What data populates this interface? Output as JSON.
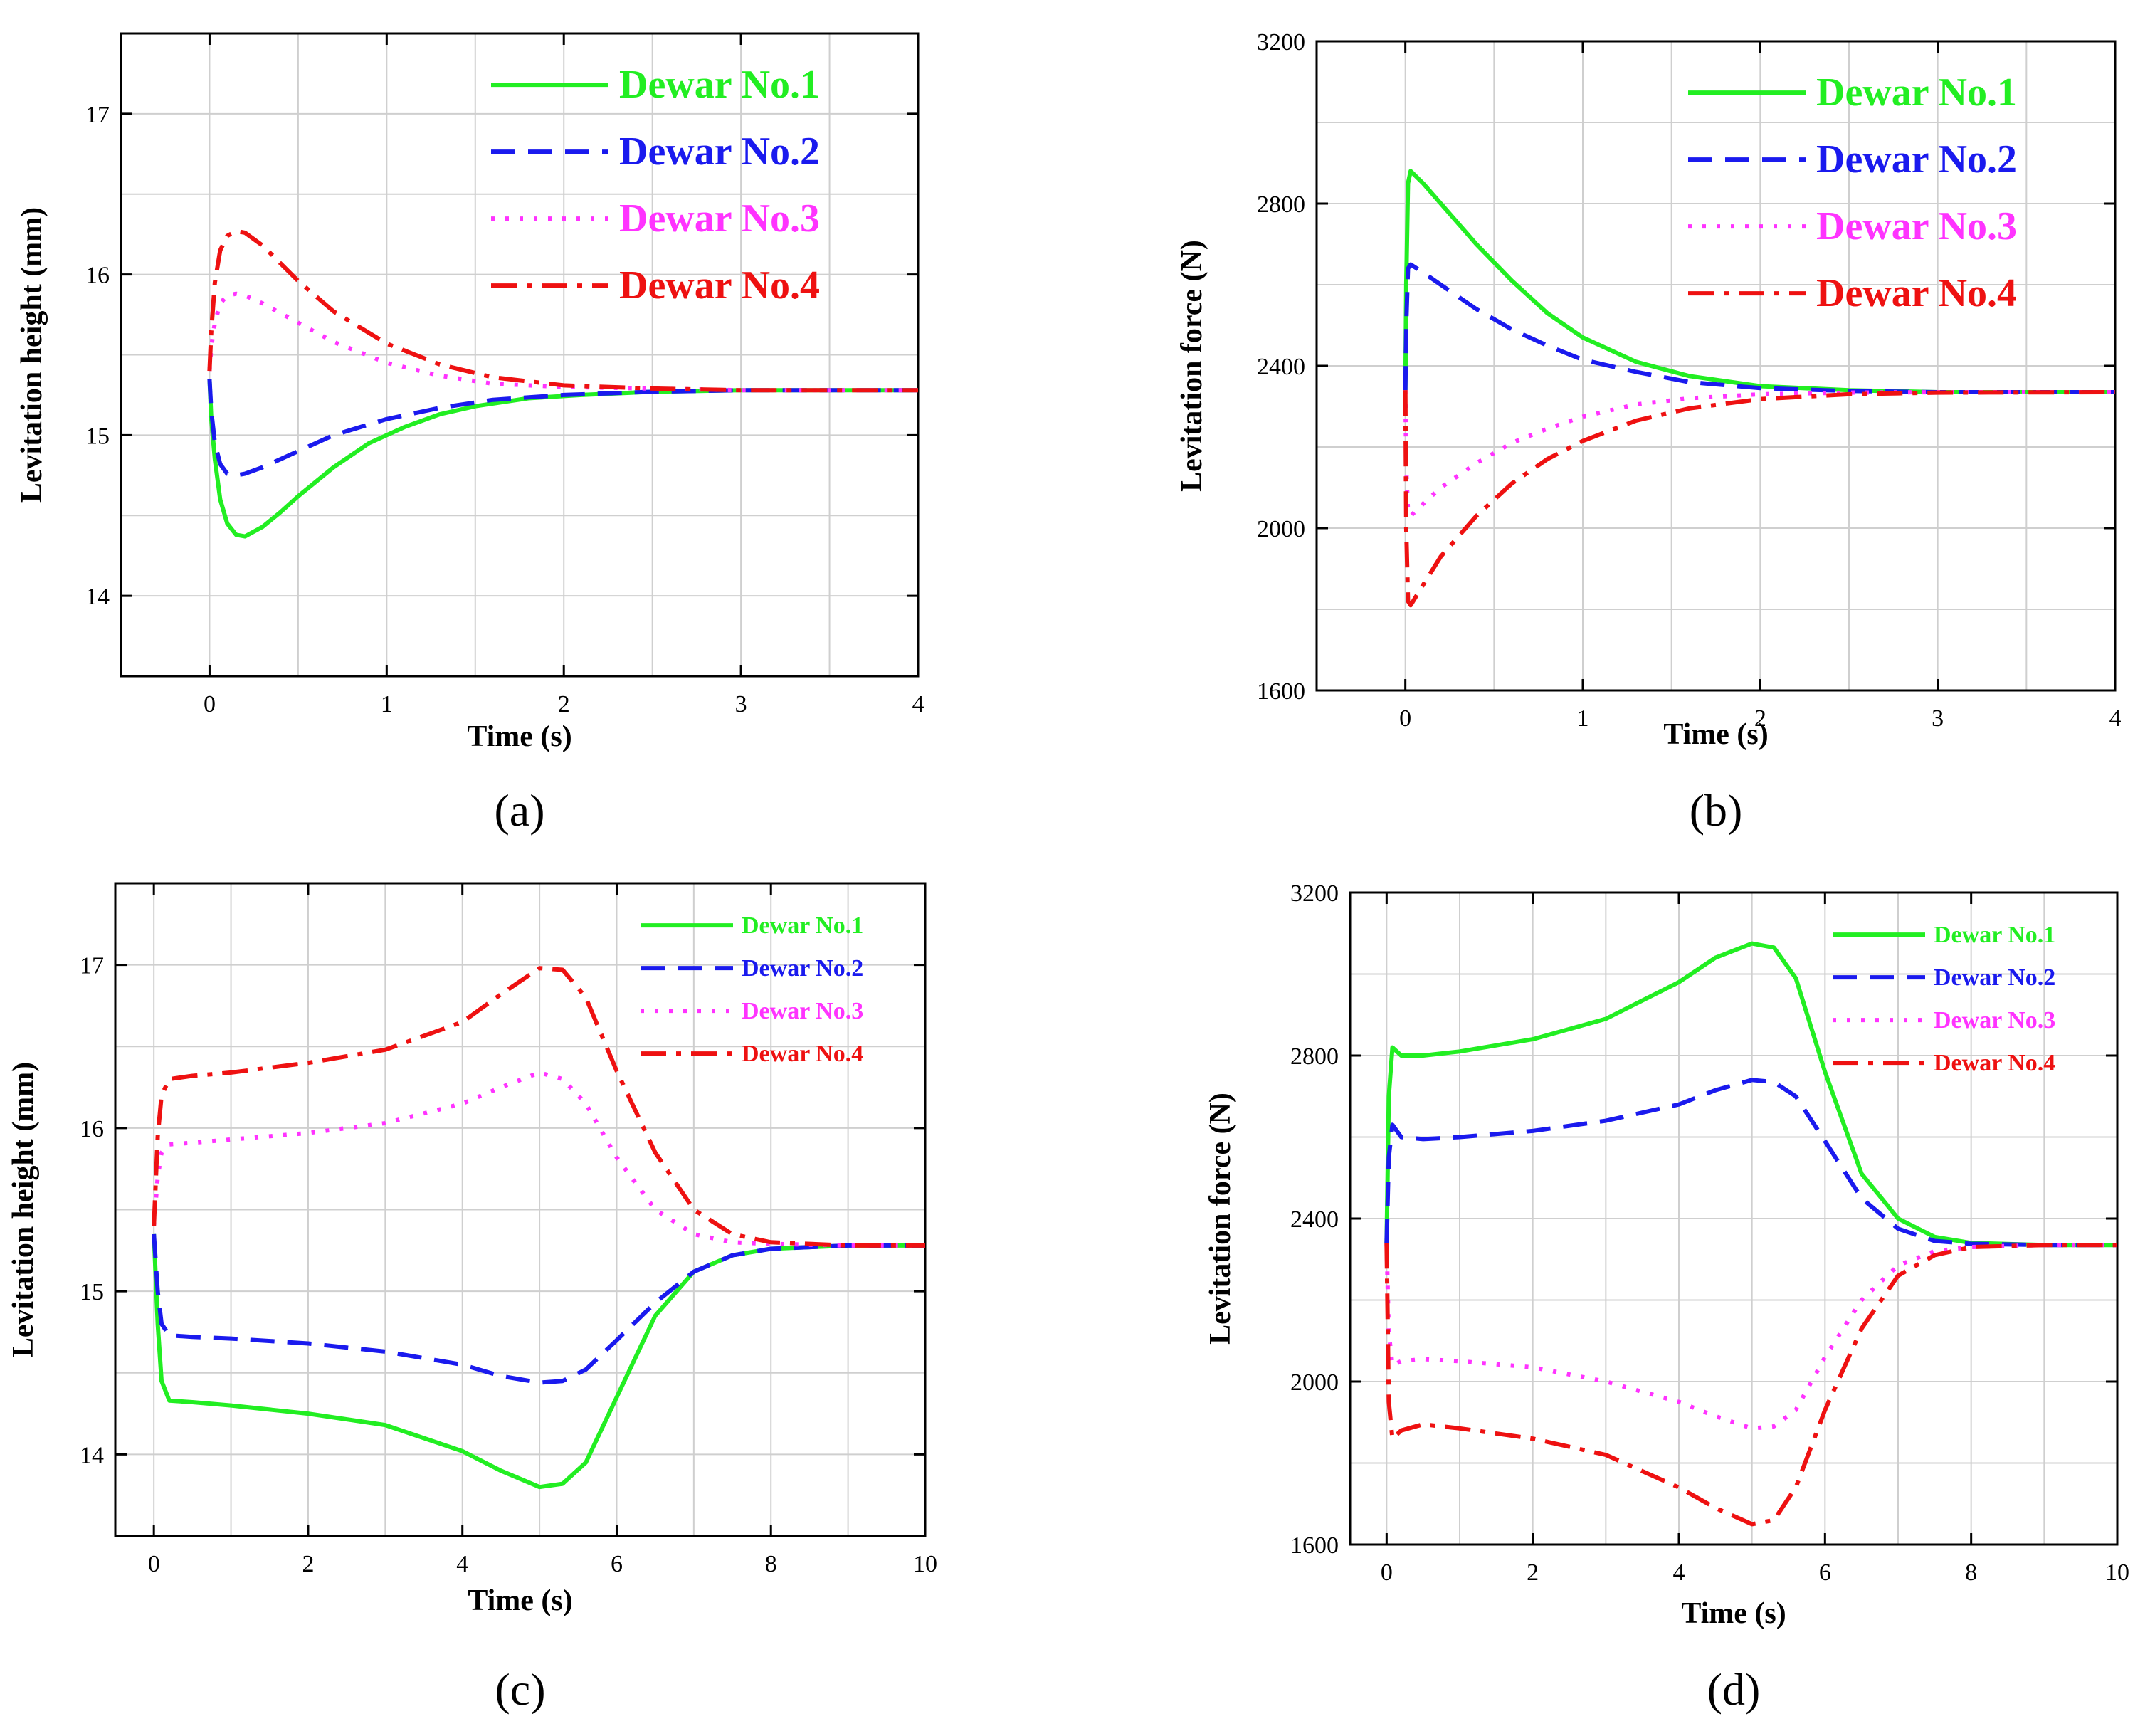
{
  "chart_data": [
    {
      "type": "line",
      "panel_label": "(a)",
      "xlabel": "Time (s)",
      "ylabel": "Levitation height (mm)",
      "xlim": [
        -0.5,
        4
      ],
      "ylim": [
        13.5,
        17.5
      ],
      "xticks": [
        0,
        1,
        2,
        3,
        4
      ],
      "yticks": [
        14,
        15,
        16,
        17
      ],
      "grid": true,
      "legend_position": "top-right",
      "legend_size": "large",
      "series": [
        {
          "name": "Dewar No.1",
          "color": "#22ee22",
          "dash": "solid",
          "x": [
            0,
            0.01,
            0.03,
            0.06,
            0.1,
            0.15,
            0.2,
            0.3,
            0.4,
            0.5,
            0.7,
            0.9,
            1.1,
            1.3,
            1.5,
            1.8,
            2.1,
            2.5,
            3.0,
            4.0
          ],
          "y": [
            15.35,
            15.1,
            14.85,
            14.6,
            14.45,
            14.38,
            14.37,
            14.43,
            14.52,
            14.62,
            14.8,
            14.95,
            15.05,
            15.13,
            15.18,
            15.23,
            15.25,
            15.27,
            15.28,
            15.28
          ]
        },
        {
          "name": "Dewar No.2",
          "color": "#1a1aee",
          "dash": "dash",
          "x": [
            0,
            0.01,
            0.03,
            0.06,
            0.1,
            0.15,
            0.2,
            0.3,
            0.5,
            0.7,
            1.0,
            1.3,
            1.6,
            2.0,
            2.5,
            3.0,
            4.0
          ],
          "y": [
            15.35,
            15.15,
            14.95,
            14.82,
            14.76,
            14.75,
            14.76,
            14.8,
            14.9,
            15.0,
            15.1,
            15.17,
            15.22,
            15.25,
            15.27,
            15.28,
            15.28
          ]
        },
        {
          "name": "Dewar No.3",
          "color": "#ff33ff",
          "dash": "dot",
          "x": [
            0,
            0.01,
            0.03,
            0.06,
            0.1,
            0.15,
            0.2,
            0.3,
            0.5,
            0.7,
            1.0,
            1.3,
            1.6,
            2.0,
            2.5,
            3.0,
            4.0
          ],
          "y": [
            15.4,
            15.55,
            15.7,
            15.82,
            15.87,
            15.88,
            15.87,
            15.82,
            15.7,
            15.58,
            15.45,
            15.37,
            15.32,
            15.3,
            15.29,
            15.28,
            15.28
          ]
        },
        {
          "name": "Dewar No.4",
          "color": "#ee1111",
          "dash": "dashdot",
          "x": [
            0,
            0.01,
            0.03,
            0.06,
            0.1,
            0.15,
            0.2,
            0.3,
            0.5,
            0.7,
            1.0,
            1.3,
            1.6,
            2.0,
            2.5,
            3.0,
            4.0
          ],
          "y": [
            15.4,
            15.65,
            15.95,
            16.15,
            16.24,
            16.27,
            16.26,
            16.18,
            15.96,
            15.77,
            15.57,
            15.44,
            15.36,
            15.31,
            15.29,
            15.28,
            15.28
          ]
        }
      ]
    },
    {
      "type": "line",
      "panel_label": "(b)",
      "xlabel": "Time (s)",
      "ylabel": "Levitation force (N)",
      "xlim": [
        -0.5,
        4
      ],
      "ylim": [
        1600,
        3200
      ],
      "xticks": [
        0,
        1,
        2,
        3,
        4
      ],
      "yticks": [
        1600,
        2000,
        2400,
        2800,
        3200
      ],
      "grid": true,
      "legend_position": "top-right",
      "legend_size": "large",
      "series": [
        {
          "name": "Dewar No.1",
          "color": "#22ee22",
          "dash": "solid",
          "x": [
            0,
            0.005,
            0.015,
            0.03,
            0.1,
            0.2,
            0.4,
            0.6,
            0.8,
            1.0,
            1.3,
            1.6,
            2.0,
            2.5,
            3.0,
            4.0
          ],
          "y": [
            2340,
            2600,
            2850,
            2880,
            2850,
            2800,
            2700,
            2610,
            2530,
            2470,
            2410,
            2375,
            2350,
            2340,
            2335,
            2335
          ]
        },
        {
          "name": "Dewar No.2",
          "color": "#1a1aee",
          "dash": "dash",
          "x": [
            0,
            0.005,
            0.015,
            0.03,
            0.1,
            0.2,
            0.4,
            0.6,
            0.8,
            1.0,
            1.3,
            1.6,
            2.0,
            2.5,
            3.0,
            4.0
          ],
          "y": [
            2340,
            2500,
            2640,
            2650,
            2630,
            2600,
            2540,
            2490,
            2450,
            2415,
            2385,
            2360,
            2345,
            2338,
            2335,
            2335
          ]
        },
        {
          "name": "Dewar No.3",
          "color": "#ff33ff",
          "dash": "dot",
          "x": [
            0,
            0.005,
            0.015,
            0.03,
            0.1,
            0.2,
            0.4,
            0.6,
            0.8,
            1.0,
            1.3,
            1.6,
            2.0,
            2.5,
            3.0,
            4.0
          ],
          "y": [
            2340,
            2150,
            2040,
            2030,
            2060,
            2100,
            2160,
            2210,
            2245,
            2275,
            2305,
            2320,
            2330,
            2334,
            2335,
            2335
          ]
        },
        {
          "name": "Dewar No.4",
          "color": "#ee1111",
          "dash": "dashdot",
          "x": [
            0,
            0.005,
            0.015,
            0.03,
            0.1,
            0.2,
            0.4,
            0.6,
            0.8,
            1.0,
            1.3,
            1.6,
            2.0,
            2.5,
            3.0,
            4.0
          ],
          "y": [
            2340,
            2000,
            1820,
            1810,
            1860,
            1930,
            2030,
            2110,
            2170,
            2215,
            2265,
            2295,
            2318,
            2330,
            2334,
            2335
          ]
        }
      ]
    },
    {
      "type": "line",
      "panel_label": "(c)",
      "xlabel": "Time (s)",
      "ylabel": "Levitation height (mm)",
      "xlim": [
        -0.5,
        10
      ],
      "ylim": [
        13.5,
        17.5
      ],
      "xticks": [
        0,
        2,
        4,
        6,
        8,
        10
      ],
      "yticks": [
        14,
        15,
        16,
        17
      ],
      "grid": true,
      "legend_position": "top-right",
      "legend_size": "small",
      "series": [
        {
          "name": "Dewar No.1",
          "color": "#22ee22",
          "dash": "solid",
          "x": [
            0,
            0.05,
            0.1,
            0.2,
            0.5,
            1,
            2,
            3,
            4,
            4.5,
            5,
            5.3,
            5.6,
            6,
            6.5,
            7,
            7.5,
            8,
            9,
            10
          ],
          "y": [
            15.35,
            14.8,
            14.45,
            14.33,
            14.32,
            14.3,
            14.25,
            14.18,
            14.02,
            13.9,
            13.8,
            13.82,
            13.95,
            14.35,
            14.85,
            15.12,
            15.22,
            15.26,
            15.28,
            15.28
          ]
        },
        {
          "name": "Dewar No.2",
          "color": "#1a1aee",
          "dash": "dash",
          "x": [
            0,
            0.05,
            0.1,
            0.2,
            0.5,
            1,
            2,
            3,
            4,
            4.5,
            5,
            5.3,
            5.6,
            6,
            6.5,
            7,
            7.5,
            8,
            9,
            10
          ],
          "y": [
            15.35,
            15.0,
            14.8,
            14.73,
            14.72,
            14.71,
            14.68,
            14.63,
            14.55,
            14.48,
            14.44,
            14.45,
            14.52,
            14.7,
            14.93,
            15.12,
            15.22,
            15.26,
            15.28,
            15.28
          ]
        },
        {
          "name": "Dewar No.3",
          "color": "#ff33ff",
          "dash": "dot",
          "x": [
            0,
            0.05,
            0.1,
            0.2,
            0.5,
            1,
            2,
            3,
            4,
            4.5,
            5,
            5.3,
            5.6,
            6,
            6.5,
            7,
            7.5,
            8,
            9,
            10
          ],
          "y": [
            15.4,
            15.7,
            15.85,
            15.9,
            15.91,
            15.93,
            15.97,
            16.03,
            16.15,
            16.25,
            16.34,
            16.3,
            16.15,
            15.82,
            15.5,
            15.35,
            15.3,
            15.29,
            15.28,
            15.28
          ]
        },
        {
          "name": "Dewar No.4",
          "color": "#ee1111",
          "dash": "dashdot",
          "x": [
            0,
            0.05,
            0.1,
            0.2,
            0.5,
            1,
            2,
            3,
            4,
            4.5,
            5,
            5.3,
            5.6,
            6,
            6.5,
            7,
            7.5,
            8,
            9,
            10
          ],
          "y": [
            15.4,
            15.95,
            16.2,
            16.3,
            16.32,
            16.34,
            16.4,
            16.48,
            16.65,
            16.82,
            16.98,
            16.97,
            16.8,
            16.35,
            15.85,
            15.5,
            15.35,
            15.3,
            15.28,
            15.28
          ]
        }
      ]
    },
    {
      "type": "line",
      "panel_label": "(d)",
      "xlabel": "Time (s)",
      "ylabel": "Levitation force (N)",
      "xlim": [
        -0.5,
        10
      ],
      "ylim": [
        1600,
        3200
      ],
      "xticks": [
        0,
        2,
        4,
        6,
        8,
        10
      ],
      "yticks": [
        1600,
        2000,
        2400,
        2800,
        3200
      ],
      "grid": true,
      "legend_position": "top-right",
      "legend_size": "small",
      "series": [
        {
          "name": "Dewar No.1",
          "color": "#22ee22",
          "dash": "solid",
          "x": [
            0,
            0.03,
            0.08,
            0.2,
            0.5,
            1,
            2,
            3,
            4,
            4.5,
            5,
            5.3,
            5.6,
            6,
            6.5,
            7,
            7.5,
            8,
            9,
            10
          ],
          "y": [
            2340,
            2700,
            2820,
            2800,
            2800,
            2810,
            2840,
            2890,
            2980,
            3040,
            3075,
            3065,
            2990,
            2760,
            2510,
            2400,
            2355,
            2340,
            2335,
            2335
          ]
        },
        {
          "name": "Dewar No.2",
          "color": "#1a1aee",
          "dash": "dash",
          "x": [
            0,
            0.03,
            0.08,
            0.2,
            0.5,
            1,
            2,
            3,
            4,
            4.5,
            5,
            5.3,
            5.6,
            6,
            6.5,
            7,
            7.5,
            8,
            9,
            10
          ],
          "y": [
            2340,
            2550,
            2630,
            2600,
            2595,
            2600,
            2615,
            2640,
            2680,
            2715,
            2740,
            2735,
            2700,
            2590,
            2450,
            2375,
            2345,
            2338,
            2335,
            2335
          ]
        },
        {
          "name": "Dewar No.3",
          "color": "#ff33ff",
          "dash": "dot",
          "x": [
            0,
            0.03,
            0.08,
            0.2,
            0.5,
            1,
            2,
            3,
            4,
            4.5,
            5,
            5.3,
            5.6,
            6,
            6.5,
            7,
            7.5,
            8,
            9,
            10
          ],
          "y": [
            2340,
            2120,
            2040,
            2050,
            2055,
            2050,
            2035,
            2000,
            1950,
            1915,
            1885,
            1890,
            1930,
            2060,
            2200,
            2285,
            2320,
            2330,
            2335,
            2335
          ]
        },
        {
          "name": "Dewar No.4",
          "color": "#ee1111",
          "dash": "dashdot",
          "x": [
            0,
            0.03,
            0.08,
            0.2,
            0.5,
            1,
            2,
            3,
            4,
            4.5,
            5,
            5.3,
            5.6,
            6,
            6.5,
            7,
            7.5,
            8,
            9,
            10
          ],
          "y": [
            2340,
            1950,
            1860,
            1880,
            1895,
            1885,
            1860,
            1820,
            1740,
            1690,
            1650,
            1660,
            1740,
            1930,
            2130,
            2260,
            2310,
            2330,
            2335,
            2335
          ]
        }
      ]
    }
  ]
}
